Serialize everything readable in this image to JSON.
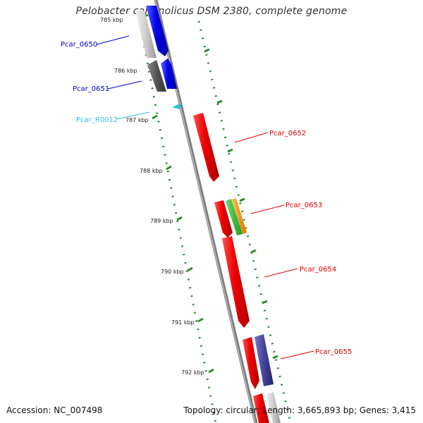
{
  "title": "Pelobacter carbinolicus DSM 2380, complete genome",
  "footer": {
    "accession": "Accession: NC_007498",
    "summary": "Topology: circular; Length: 3,665,893 bp; Genes: 3,415"
  },
  "colors": {
    "backbone": "#888888",
    "tick": "#2e8b2e",
    "dot": "#2e8b2e"
  },
  "ticks": [
    "785 kbp",
    "786 kbp",
    "787 kbp",
    "788 kbp",
    "789 kbp",
    "790 kbp",
    "791 kbp",
    "792 kbp"
  ],
  "genes": [
    {
      "label": "Pcar_0650",
      "color": "#0000dd"
    },
    {
      "label": "Pcar_0651",
      "color": "#0000dd"
    },
    {
      "label": "Pcar_R0012",
      "color": "#33bbdd"
    },
    {
      "label": "Pcar_0652",
      "color": "#dd0000"
    },
    {
      "label": "Pcar_0653",
      "color": "#dd0000"
    },
    {
      "label": "Pcar_0654",
      "color": "#dd0000"
    },
    {
      "label": "Pcar_0655",
      "color": "#dd0000"
    }
  ]
}
